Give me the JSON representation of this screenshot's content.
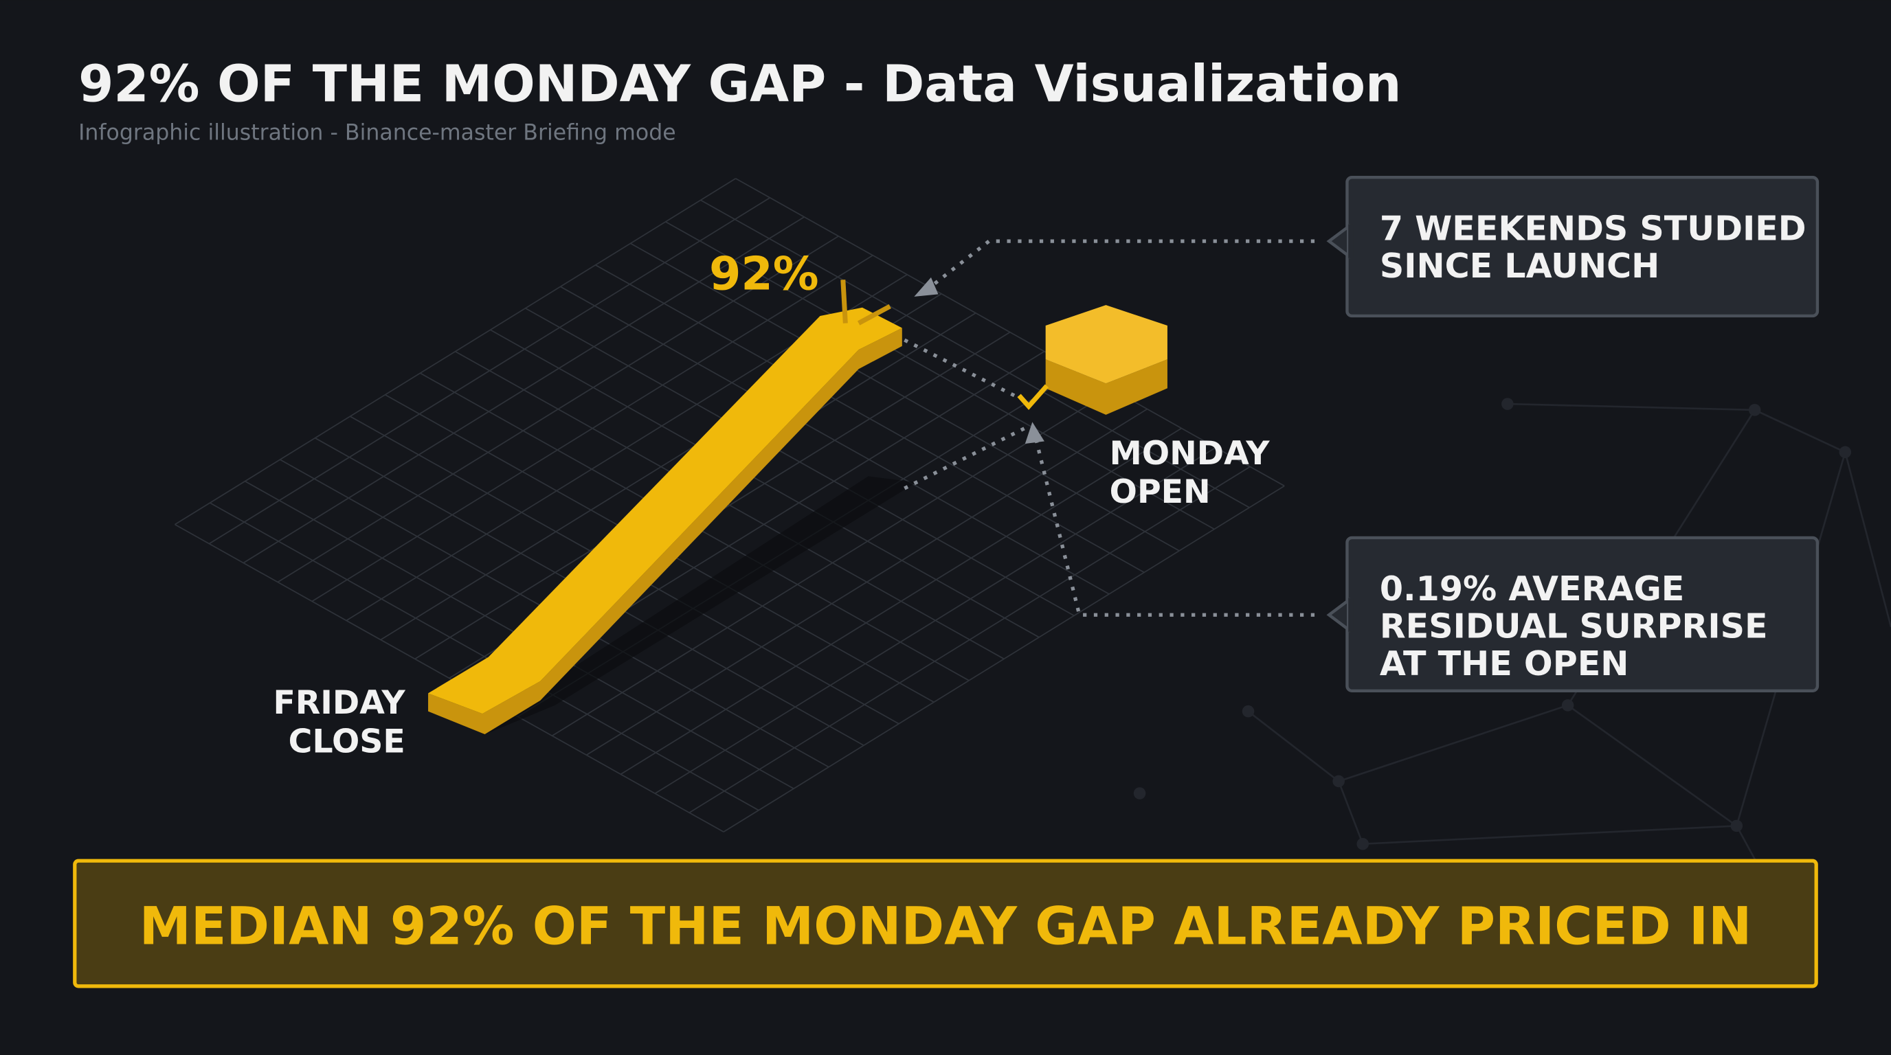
{
  "header": {
    "title": "92% OF THE MONDAY GAP - Data Visualization",
    "subtitle": "Infographic illustration - Binance-master Briefing mode"
  },
  "diagram": {
    "peak_label": "92%",
    "start_label": [
      "FRIDAY",
      "CLOSE"
    ],
    "end_label": [
      "MONDAY",
      "OPEN"
    ]
  },
  "callouts": [
    {
      "lines": [
        "7 WEEKENDS STUDIED",
        "SINCE LAUNCH"
      ]
    },
    {
      "lines": [
        "0.19% AVERAGE",
        "RESIDUAL SURPRISE",
        "AT THE OPEN"
      ]
    }
  ],
  "banner": "MEDIAN 92% OF THE MONDAY GAP ALREADY PRICED IN"
}
